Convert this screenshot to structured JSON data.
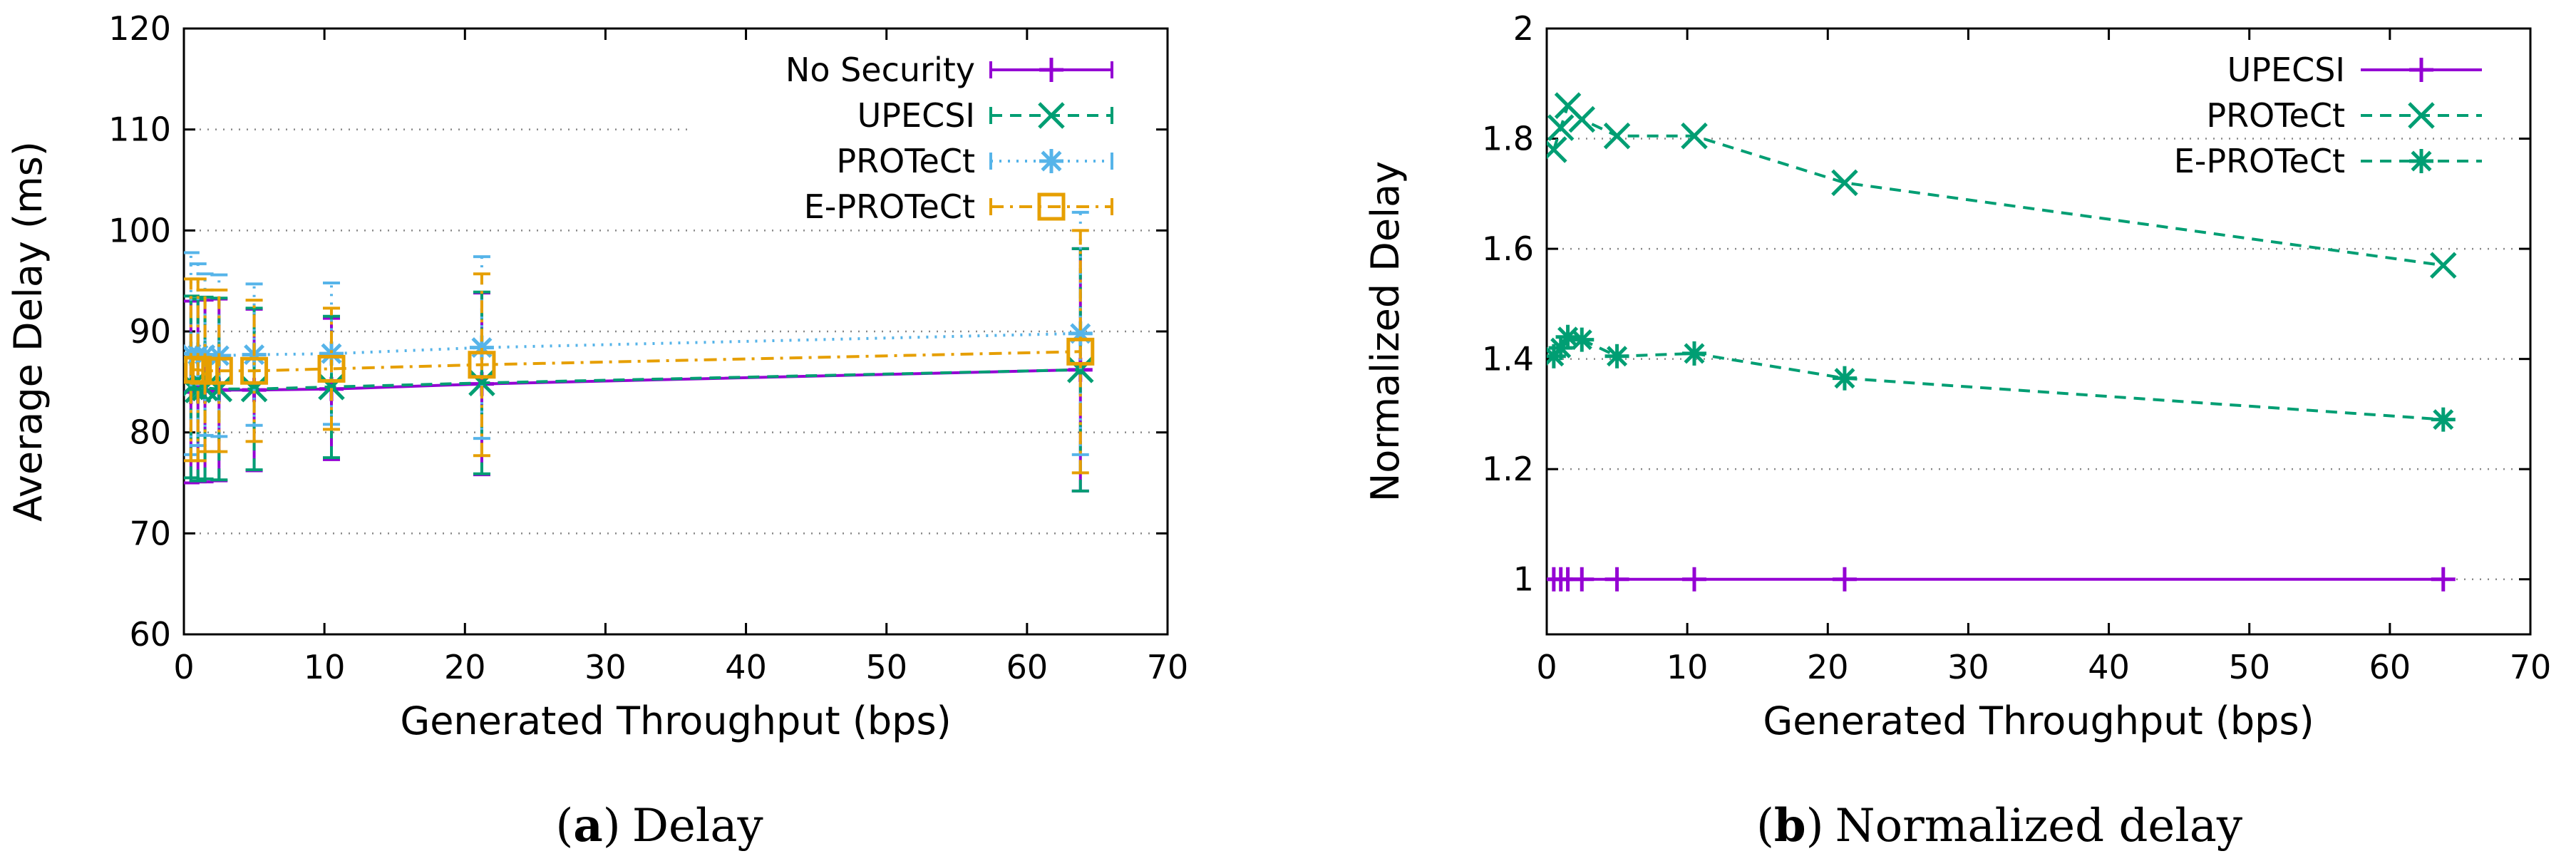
{
  "chart_data": [
    {
      "type": "line",
      "panel_label": "a",
      "caption": "Delay",
      "xlabel": "Generated Throughput (bps)",
      "ylabel": "Average Delay (ms)",
      "xlim": [
        0,
        70
      ],
      "ylim": [
        60,
        120
      ],
      "xticks": [
        0,
        10,
        20,
        30,
        40,
        50,
        60,
        70
      ],
      "yticks": [
        60,
        70,
        80,
        90,
        100,
        110,
        120
      ],
      "grid": "horizontal dotted",
      "legend_position": "top-right",
      "x": [
        0.5,
        1,
        1.5,
        2.5,
        5,
        10.5,
        21.2,
        63.8
      ],
      "series": [
        {
          "name": "No Security",
          "color": "#9400d3",
          "marker": "plus",
          "dash": "solid",
          "values": [
            84,
            84.1,
            84.1,
            84.2,
            84.2,
            84.3,
            84.8,
            86.2
          ],
          "err": [
            9,
            9,
            9,
            9,
            8,
            7,
            9,
            12
          ]
        },
        {
          "name": "UPECSI",
          "color": "#009e73",
          "marker": "x",
          "dash": "dashed",
          "values": [
            84.5,
            84.2,
            84.4,
            84.3,
            84.3,
            84.5,
            84.9,
            86.2
          ],
          "err": [
            9,
            9,
            9,
            9,
            8,
            7,
            9,
            12
          ]
        },
        {
          "name": "PROTeCt",
          "color": "#56b4e9",
          "marker": "star",
          "dash": "dotted",
          "values": [
            87.8,
            87.7,
            87.7,
            87.6,
            87.7,
            87.8,
            88.4,
            89.8
          ],
          "err": [
            10,
            9,
            8,
            8,
            7,
            7,
            9,
            12
          ]
        },
        {
          "name": "E-PROTeCt",
          "color": "#e69f00",
          "marker": "square",
          "dash": "dashdot",
          "values": [
            86.2,
            86.2,
            86.1,
            86.1,
            86.1,
            86.3,
            86.7,
            88.0
          ],
          "err": [
            9,
            9,
            8,
            8,
            7,
            6,
            9,
            12
          ]
        }
      ]
    },
    {
      "type": "line",
      "panel_label": "b",
      "caption": "Normalized delay",
      "xlabel": "Generated Throughput (bps)",
      "ylabel": "Normalized Delay",
      "xlim": [
        0,
        70
      ],
      "ylim": [
        0.9,
        2.0
      ],
      "xticks": [
        0,
        10,
        20,
        30,
        40,
        50,
        60,
        70
      ],
      "yticks": [
        1,
        1.2,
        1.4,
        1.6,
        1.8,
        2
      ],
      "grid": "horizontal dotted",
      "legend_position": "top-right",
      "x": [
        0.5,
        1,
        1.5,
        2.5,
        5,
        10.5,
        21.2,
        63.8
      ],
      "series": [
        {
          "name": "UPECSI",
          "color": "#9400d3",
          "marker": "plus",
          "dash": "solid",
          "values": [
            1.0,
            1.0,
            1.0,
            1.0,
            1.0,
            1.0,
            1.0,
            1.0
          ]
        },
        {
          "name": "PROTeCt",
          "color": "#009e73",
          "marker": "x",
          "dash": "dashed",
          "values": [
            1.78,
            1.82,
            1.86,
            1.835,
            1.805,
            1.805,
            1.72,
            1.57
          ]
        },
        {
          "name": "E-PROTeCt",
          "color": "#009e73",
          "marker": "star",
          "dash": "dashed",
          "values": [
            1.405,
            1.42,
            1.44,
            1.435,
            1.405,
            1.41,
            1.365,
            1.29
          ]
        }
      ]
    }
  ]
}
